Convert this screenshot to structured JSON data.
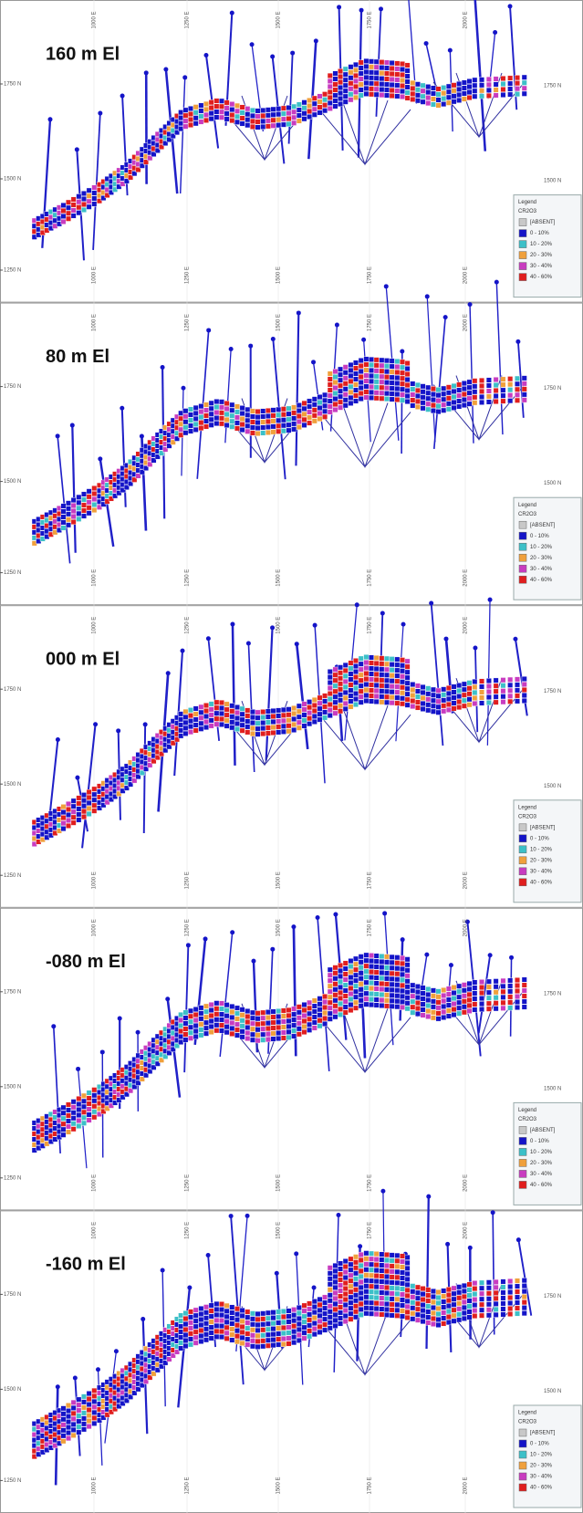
{
  "panels": [
    {
      "title": "160 m El"
    },
    {
      "title": "80 m El"
    },
    {
      "title": "000 m El"
    },
    {
      "title": "-080 m El"
    },
    {
      "title": "-160 m El"
    }
  ],
  "northings": [
    "1750 N",
    "1500 N",
    "1250 N"
  ],
  "eastings": [
    "1000 E",
    "1250 E",
    "1500 E",
    "1750 E",
    "2000 E"
  ],
  "legend": {
    "title": "Legend",
    "field": "CR2O3",
    "items": [
      {
        "label": "[ABSENT]",
        "color": "#c8c8c8"
      },
      {
        "label": "0 - 10%",
        "color": "#1414c8"
      },
      {
        "label": "10 - 20%",
        "color": "#3cc0c8"
      },
      {
        "label": "20 - 30%",
        "color": "#f0a03c"
      },
      {
        "label": "30 - 40%",
        "color": "#c83cc0"
      },
      {
        "label": "40 - 60%",
        "color": "#e01e1e"
      }
    ]
  }
}
